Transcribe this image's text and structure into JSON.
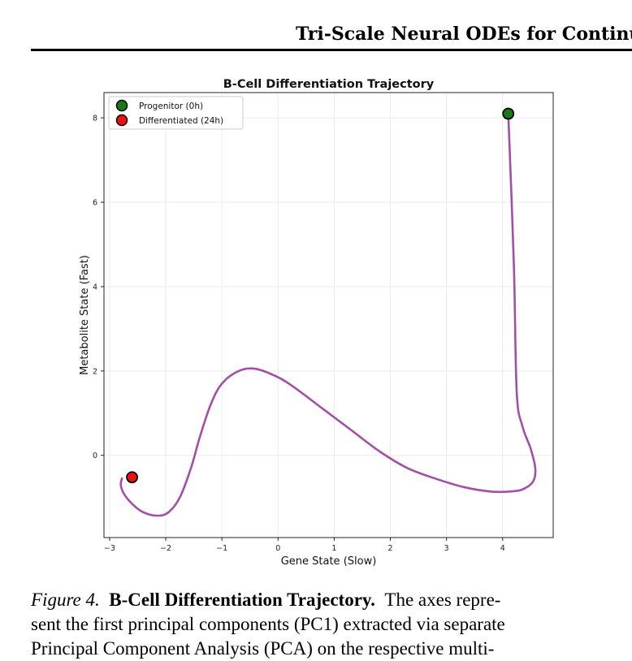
{
  "running_head": "Tri-Scale Neural ODEs for Continuo",
  "chart_data": {
    "type": "line",
    "title": "B-Cell Differentiation Trajectory",
    "xlabel": "Gene State (Slow)",
    "ylabel": "Metabolite State (Fast)",
    "xlim": [
      -3.1,
      4.9
    ],
    "ylim": [
      -1.95,
      8.6
    ],
    "xticks": [
      -3,
      -2,
      -1,
      0,
      1,
      2,
      3,
      4
    ],
    "yticks": [
      0,
      2,
      4,
      6,
      8
    ],
    "grid": true,
    "legend_position": "top-left",
    "series": [
      {
        "color": "#a34fa8",
        "x": [
          4.1,
          4.2,
          4.25,
          4.35,
          4.5,
          4.58,
          4.55,
          4.4,
          4.2,
          3.8,
          3.3,
          2.8,
          2.3,
          1.8,
          1.3,
          0.8,
          0.3,
          0.0,
          -0.4,
          -0.7,
          -1.0,
          -1.2,
          -1.4,
          -1.55,
          -1.75,
          -1.95,
          -2.15,
          -2.4,
          -2.6,
          -2.75,
          -2.8,
          -2.78
        ],
        "y": [
          8.1,
          4.5,
          1.5,
          0.7,
          0.15,
          -0.3,
          -0.6,
          -0.78,
          -0.85,
          -0.86,
          -0.75,
          -0.55,
          -0.3,
          0.1,
          0.6,
          1.1,
          1.6,
          1.85,
          2.05,
          2.0,
          1.7,
          1.2,
          0.4,
          -0.3,
          -1.0,
          -1.35,
          -1.43,
          -1.35,
          -1.15,
          -0.9,
          -0.7,
          -0.55
        ]
      }
    ],
    "markers": [
      {
        "label": "Progenitor (0h)",
        "x": 4.1,
        "y": 8.1,
        "color": "#1a7a1a"
      },
      {
        "label": "Differentiated (24h)",
        "x": -2.6,
        "y": -0.52,
        "color": "#ee1111"
      }
    ]
  },
  "caption": {
    "label": "Figure 4.",
    "title": "B-Cell Differentiation Trajectory.",
    "line1_rest": "The axes repre-",
    "line2": "sent the first principal components (PC1) extracted via separate",
    "line3": "Principal Component Analysis (PCA) on the respective multi-"
  }
}
